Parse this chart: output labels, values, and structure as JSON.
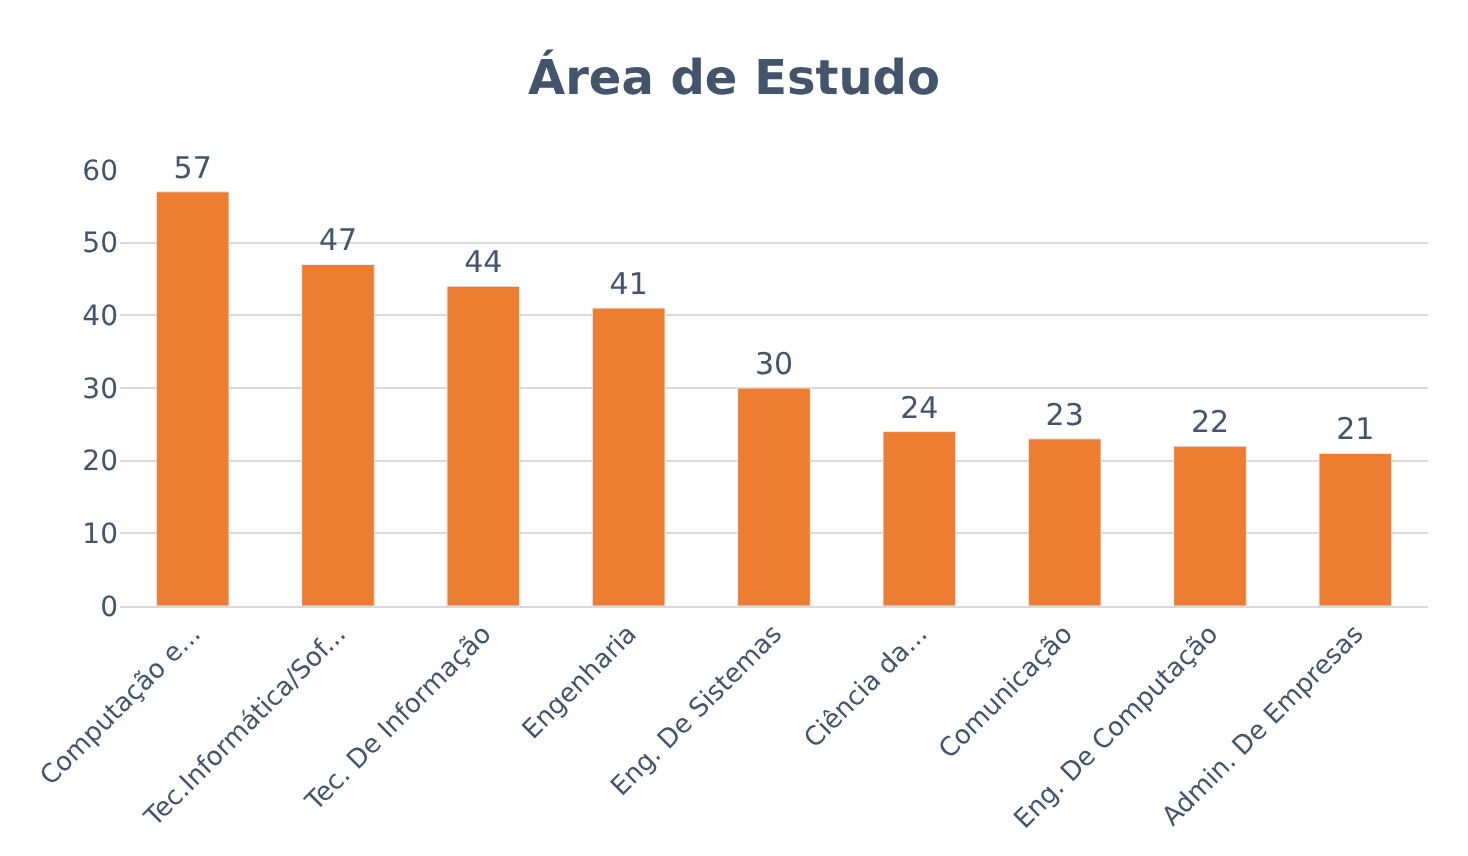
{
  "chart_data": {
    "type": "bar",
    "title": "Área de Estudo",
    "categories": [
      "Computação e...",
      "Tec.Informática/Sof...",
      "Tec. De Informação",
      "Engenharia",
      "Eng. De Sistemas",
      "Ciência da...",
      "Comunicação",
      "Eng. De Computação",
      "Admin. De Empresas"
    ],
    "values": [
      57,
      47,
      44,
      41,
      30,
      24,
      23,
      22,
      21
    ],
    "color": "#ed7d31",
    "ylim": [
      0,
      60
    ],
    "yticks": [
      0,
      10,
      20,
      30,
      40,
      50,
      60
    ],
    "grid": "y",
    "data_labels": true
  }
}
